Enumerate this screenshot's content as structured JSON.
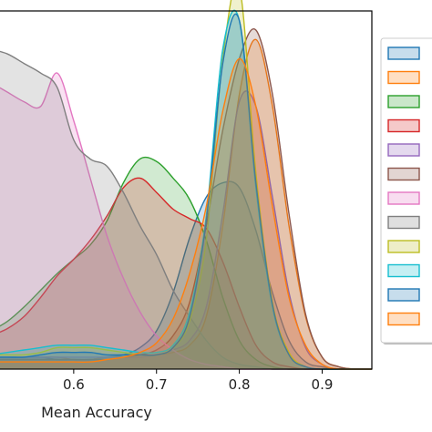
{
  "chart_data": {
    "type": "area",
    "subtype": "kde-density",
    "title": "",
    "xlabel": "Mean Accuracy",
    "ylabel": "",
    "xlim": [
      0.5,
      0.96
    ],
    "ylim": [
      0,
      15
    ],
    "x_ticks": [
      0.6,
      0.7,
      0.8,
      0.9
    ],
    "x_tick_labels": [
      "0.6",
      "0.7",
      "0.8",
      "0.9"
    ],
    "grid": false,
    "legend_placement": "right",
    "x": [
      0.5,
      0.52,
      0.54,
      0.56,
      0.58,
      0.6,
      0.62,
      0.64,
      0.66,
      0.68,
      0.7,
      0.72,
      0.74,
      0.76,
      0.78,
      0.8,
      0.82,
      0.84,
      0.86,
      0.88,
      0.9,
      0.92,
      0.94,
      0.96
    ],
    "series": [
      {
        "color": "#1f77b4",
        "values": [
          0.5,
          0.5,
          0.5,
          0.5,
          0.4,
          0.4,
          0.4,
          0.5,
          0.6,
          0.9,
          1.6,
          3.2,
          5.5,
          7.2,
          7.8,
          7.6,
          5.8,
          3.2,
          1.2,
          0.3,
          0.1,
          0.0,
          0.0,
          0.0
        ]
      },
      {
        "color": "#ff7f0e",
        "values": [
          0.5,
          0.5,
          0.5,
          0.5,
          0.5,
          0.4,
          0.4,
          0.5,
          0.5,
          0.5,
          0.6,
          0.7,
          1.0,
          2.2,
          6.0,
          11.5,
          13.8,
          11.0,
          6.0,
          2.2,
          0.5,
          0.1,
          0.0,
          0.0
        ]
      },
      {
        "color": "#2ca02c",
        "values": [
          1.6,
          2.0,
          2.6,
          3.3,
          4.0,
          4.6,
          5.2,
          6.2,
          7.8,
          8.8,
          8.7,
          8.0,
          7.1,
          5.4,
          3.0,
          1.2,
          0.4,
          0.1,
          0.0,
          0.0,
          0.0,
          0.0,
          0.0,
          0.0
        ]
      },
      {
        "color": "#d62728",
        "values": [
          1.4,
          1.7,
          2.2,
          3.0,
          3.9,
          4.6,
          5.4,
          6.4,
          7.6,
          8.0,
          7.4,
          6.7,
          6.3,
          5.9,
          4.5,
          2.6,
          1.0,
          0.3,
          0.1,
          0.0,
          0.0,
          0.0,
          0.0,
          0.0
        ]
      },
      {
        "color": "#9467bd",
        "values": [
          0.5,
          0.5,
          0.5,
          0.5,
          0.5,
          0.5,
          0.5,
          0.5,
          0.5,
          0.5,
          0.6,
          0.8,
          1.2,
          2.6,
          6.5,
          11.2,
          11.0,
          7.2,
          3.2,
          0.9,
          0.2,
          0.0,
          0.0,
          0.0
        ]
      },
      {
        "color": "#8c564b",
        "values": [
          0.4,
          0.4,
          0.4,
          0.4,
          0.4,
          0.4,
          0.4,
          0.4,
          0.5,
          0.6,
          0.8,
          1.4,
          2.8,
          6.0,
          10.0,
          13.0,
          14.2,
          11.5,
          6.5,
          2.3,
          0.5,
          0.1,
          0.0,
          0.0
        ]
      },
      {
        "color": "#e377c2",
        "values": [
          12.0,
          11.6,
          11.2,
          11.0,
          12.4,
          10.4,
          8.0,
          5.6,
          3.8,
          2.4,
          1.4,
          0.8,
          0.4,
          0.2,
          0.1,
          0.0,
          0.0,
          0.0,
          0.0,
          0.0,
          0.0,
          0.0,
          0.0,
          0.0
        ]
      },
      {
        "color": "#7f7f7f",
        "values": [
          13.4,
          13.2,
          12.8,
          12.4,
          11.8,
          9.6,
          8.8,
          8.5,
          7.4,
          6.0,
          4.8,
          3.3,
          2.2,
          1.2,
          0.5,
          0.2,
          0.1,
          0.0,
          0.0,
          0.0,
          0.0,
          0.0,
          0.0,
          0.0
        ]
      },
      {
        "color": "#bcbd22",
        "values": [
          0.6,
          0.6,
          0.6,
          0.7,
          0.9,
          0.9,
          0.9,
          0.8,
          0.7,
          0.6,
          0.6,
          0.9,
          2.0,
          5.4,
          13.0,
          16.0,
          8.2,
          2.8,
          0.7,
          0.1,
          0.0,
          0.0,
          0.0,
          0.0
        ]
      },
      {
        "color": "#17becf",
        "values": [
          0.6,
          0.7,
          0.8,
          0.9,
          1.0,
          1.0,
          1.0,
          0.9,
          0.8,
          0.7,
          0.7,
          1.0,
          2.4,
          6.4,
          13.4,
          14.6,
          7.6,
          2.6,
          0.6,
          0.1,
          0.0,
          0.0,
          0.0,
          0.0
        ]
      },
      {
        "color": "#1f77b4",
        "values": [
          0.5,
          0.5,
          0.5,
          0.6,
          0.7,
          0.7,
          0.7,
          0.6,
          0.6,
          0.6,
          0.6,
          0.9,
          2.2,
          6.2,
          12.8,
          14.6,
          7.8,
          2.7,
          0.6,
          0.1,
          0.0,
          0.0,
          0.0,
          0.0
        ]
      },
      {
        "color": "#ff7f0e",
        "values": [
          0.3,
          0.3,
          0.3,
          0.3,
          0.3,
          0.3,
          0.3,
          0.4,
          0.5,
          0.7,
          1.1,
          2.1,
          4.0,
          6.8,
          10.8,
          13.0,
          11.0,
          6.8,
          3.0,
          1.0,
          0.2,
          0.0,
          0.0,
          0.0
        ]
      }
    ]
  }
}
